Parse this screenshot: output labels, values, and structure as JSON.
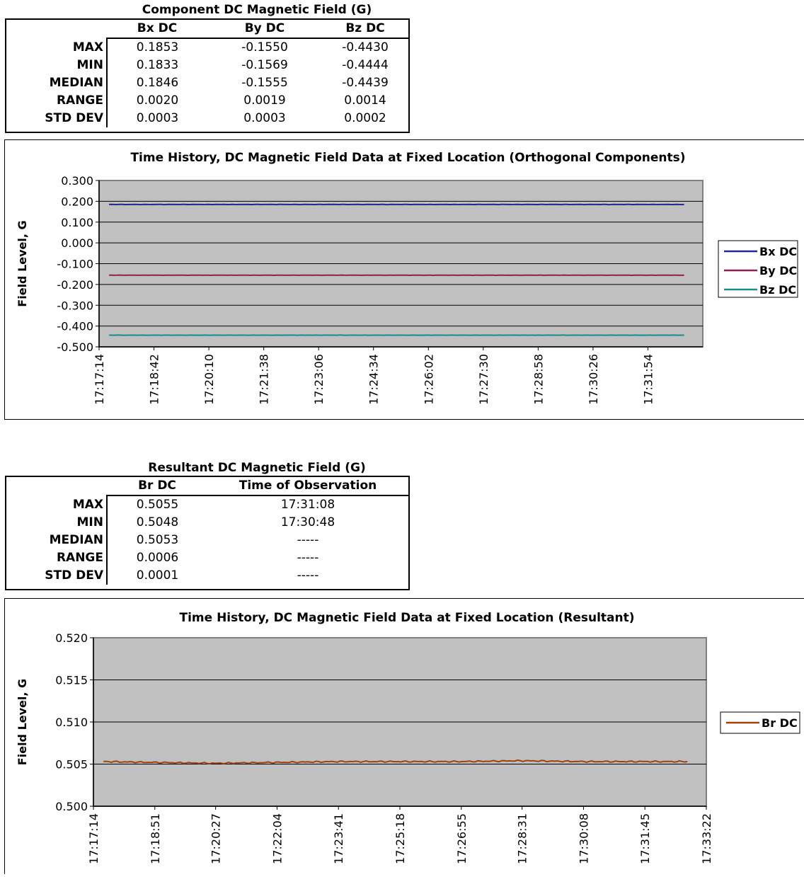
{
  "component_table": {
    "title": "Component DC Magnetic Field (G)",
    "columns": [
      "Bx DC",
      "By DC",
      "Bz DC"
    ],
    "rows": [
      {
        "label": "MAX",
        "values": [
          "0.1853",
          "-0.1550",
          "-0.4430"
        ]
      },
      {
        "label": "MIN",
        "values": [
          "0.1833",
          "-0.1569",
          "-0.4444"
        ]
      },
      {
        "label": "MEDIAN",
        "values": [
          "0.1846",
          "-0.1555",
          "-0.4439"
        ]
      },
      {
        "label": "RANGE",
        "values": [
          "0.0020",
          "0.0019",
          "0.0014"
        ]
      },
      {
        "label": "STD DEV",
        "values": [
          "0.0003",
          "0.0003",
          "0.0002"
        ]
      }
    ]
  },
  "resultant_table": {
    "title": "Resultant DC Magnetic Field (G)",
    "columns": [
      "Br DC",
      "Time of Observation"
    ],
    "rows": [
      {
        "label": "MAX",
        "values": [
          "0.5055",
          "17:31:08"
        ]
      },
      {
        "label": "MIN",
        "values": [
          "0.5048",
          "17:30:48"
        ]
      },
      {
        "label": "MEDIAN",
        "values": [
          "0.5053",
          "-----"
        ]
      },
      {
        "label": "RANGE",
        "values": [
          "0.0006",
          "-----"
        ]
      },
      {
        "label": "STD DEV",
        "values": [
          "0.0001",
          "-----"
        ]
      }
    ]
  },
  "chart_data": [
    {
      "type": "line",
      "title": "Time History, DC Magnetic Field Data at Fixed Location (Orthogonal Components)",
      "xlabel": "",
      "ylabel": "Field Level, G",
      "ylim": [
        -0.5,
        0.3
      ],
      "yticks": [
        "0.300",
        "0.200",
        "0.100",
        "0.000",
        "-0.100",
        "-0.200",
        "-0.300",
        "-0.400",
        "-0.500"
      ],
      "xticks": [
        "17:17:14",
        "17:18:42",
        "17:20:10",
        "17:21:38",
        "17:23:06",
        "17:24:34",
        "17:26:02",
        "17:27:30",
        "17:28:58",
        "17:30:26",
        "17:31:54"
      ],
      "xlim": [
        "17:17:14",
        "17:33:22"
      ],
      "x_range": [
        "17:17:30",
        "17:32:52"
      ],
      "grid": true,
      "legend": "right",
      "plot_bg": "#c0c0c0",
      "series": [
        {
          "name": "Bx DC",
          "color": "#1f2a8c",
          "x": [
            "17:17:30",
            "17:21:00",
            "17:25:00",
            "17:29:00",
            "17:32:52"
          ],
          "values": [
            0.1846,
            0.1846,
            0.1846,
            0.1846,
            0.1846
          ],
          "min": 0.1833,
          "max": 0.1853
        },
        {
          "name": "By DC",
          "color": "#8b2252",
          "x": [
            "17:17:30",
            "17:21:00",
            "17:25:00",
            "17:29:00",
            "17:32:52"
          ],
          "values": [
            -0.1555,
            -0.1555,
            -0.1555,
            -0.1555,
            -0.1555
          ],
          "min": -0.1569,
          "max": -0.155
        },
        {
          "name": "Bz DC",
          "color": "#1a8c8c",
          "x": [
            "17:17:30",
            "17:21:00",
            "17:25:00",
            "17:29:00",
            "17:32:52"
          ],
          "values": [
            -0.4439,
            -0.4439,
            -0.4439,
            -0.4439,
            -0.4439
          ],
          "min": -0.4444,
          "max": -0.443
        }
      ]
    },
    {
      "type": "line",
      "title": "Time History, DC Magnetic Field Data at Fixed Location (Resultant)",
      "xlabel": "",
      "ylabel": "Field Level, G",
      "ylim": [
        0.5,
        0.52
      ],
      "yticks": [
        "0.520",
        "0.515",
        "0.510",
        "0.505",
        "0.500"
      ],
      "xticks": [
        "17:17:14",
        "17:18:51",
        "17:20:27",
        "17:22:04",
        "17:23:41",
        "17:25:18",
        "17:26:55",
        "17:28:31",
        "17:30:08",
        "17:31:45",
        "17:33:22"
      ],
      "xlim": [
        "17:17:14",
        "17:33:22"
      ],
      "grid": true,
      "legend": "right",
      "plot_bg": "#c0c0c0",
      "series": [
        {
          "name": "Br DC",
          "color": "#a0400a",
          "x": [
            "17:17:30",
            "17:18:51",
            "17:20:27",
            "17:22:04",
            "17:23:41",
            "17:25:18",
            "17:26:55",
            "17:28:31",
            "17:30:08",
            "17:31:45",
            "17:32:52"
          ],
          "values": [
            0.5053,
            0.5052,
            0.5051,
            0.5052,
            0.5053,
            0.5053,
            0.5053,
            0.5054,
            0.5053,
            0.5053,
            0.5053
          ]
        }
      ]
    }
  ]
}
